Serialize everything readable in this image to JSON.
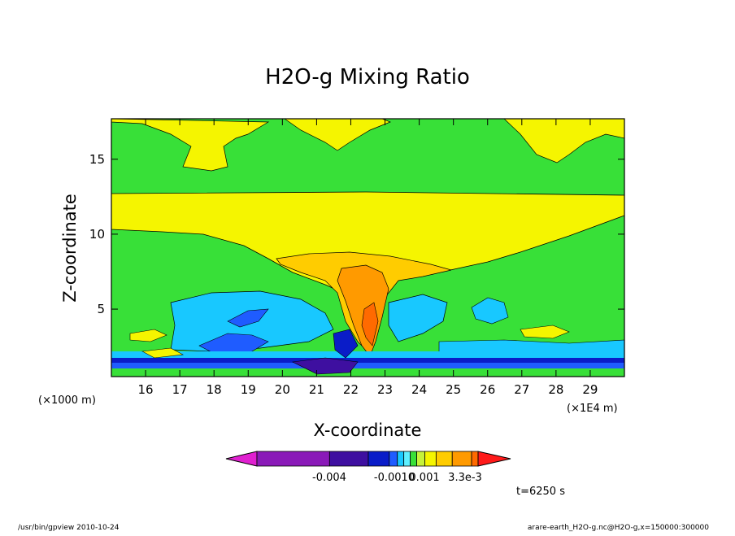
{
  "chart_data": {
    "type": "heatmap",
    "title": "H2O-g Mixing Ratio",
    "xlabel": "X-coordinate",
    "ylabel": "Z-coordinate",
    "x_unit": "(×1E4 m)",
    "y_unit": "(×1000 m)",
    "x_ticks": [
      "16",
      "17",
      "18",
      "19",
      "20",
      "21",
      "22",
      "23",
      "24",
      "25",
      "26",
      "27",
      "28",
      "29"
    ],
    "y_ticks": [
      "5",
      "10",
      "15"
    ],
    "xlim": [
      15.0,
      30.0
    ],
    "ylim": [
      0.5,
      17.7
    ],
    "colorbar": {
      "colors": [
        "#e020d0",
        "#8a1ab8",
        "#3e0fa0",
        "#0a1cc8",
        "#1f5cff",
        "#18c8ff",
        "#5ef0ff",
        "#38e038",
        "#c6f23a",
        "#f5f500",
        "#ffcc00",
        "#ff9a00",
        "#ff6a00",
        "#ff1a1a"
      ],
      "labels": [
        "-0.004",
        "-0.0010",
        "0.001",
        "3.3e-3"
      ]
    },
    "time_label": "t=6250 s",
    "footer_left": "/usr/bin/gpview   2010-10-24",
    "footer_right": "arare-earth_H2O-g.nc@H2O-g,x=150000:300000"
  }
}
